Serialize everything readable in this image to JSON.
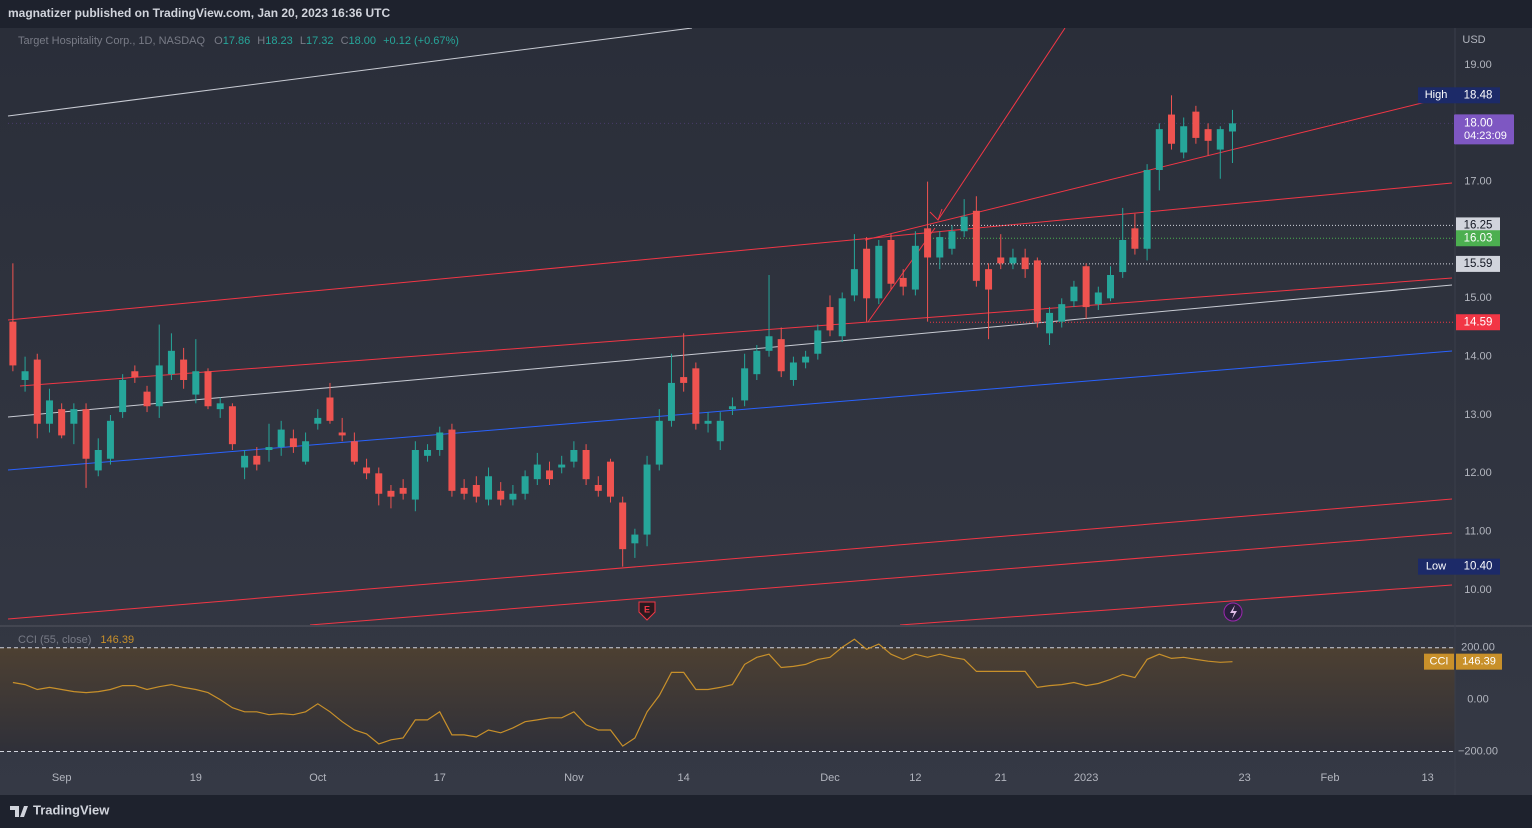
{
  "header": {
    "publisher": "magnatizer published on TradingView.com, Jan 20, 2023 16:36 UTC"
  },
  "footer": {
    "brand": "TradingView"
  },
  "chart_data": [
    {
      "type": "candlestick",
      "title": "Target Hospitality Corp., 1D, NASDAQ",
      "ohlc_keys": [
        "O",
        "H",
        "L",
        "C"
      ],
      "change": "+0.12 (+0.67%)",
      "unit": "USD",
      "up_color": "#26a69a",
      "down_color": "#ef5350",
      "open": [
        14.6,
        13.6,
        13.95,
        12.85,
        13.1,
        12.85,
        13.1,
        12.05,
        12.25,
        13.05,
        13.75,
        13.4,
        13.15,
        13.7,
        13.95,
        13.35,
        13.75,
        13.1,
        13.15,
        12.1,
        12.3,
        12.4,
        12.45,
        12.6,
        12.2,
        12.85,
        13.3,
        12.7,
        12.55,
        12.1,
        12.0,
        11.7,
        11.75,
        11.55,
        12.3,
        12.4,
        12.75,
        11.75,
        11.8,
        11.55,
        11.7,
        11.55,
        11.65,
        11.9,
        12.05,
        12.1,
        12.2,
        12.4,
        11.8,
        12.2,
        11.5,
        10.8,
        10.95,
        12.15,
        12.9,
        13.65,
        13.8,
        12.85,
        12.55,
        13.1,
        13.25,
        13.7,
        14.1,
        14.3,
        13.6,
        13.9,
        14.05,
        14.85,
        14.35,
        15.05,
        15.85,
        15.0,
        16.0,
        15.35,
        15.15,
        16.2,
        15.7,
        15.85,
        16.15,
        16.5,
        15.5,
        15.7,
        15.6,
        15.7,
        15.65,
        14.4,
        14.6,
        14.95,
        15.55,
        14.9,
        15.0,
        15.45,
        16.2,
        15.85,
        17.2,
        18.15,
        17.5,
        18.2,
        17.9,
        17.55,
        17.86
      ],
      "high": [
        15.6,
        14.0,
        14.05,
        13.45,
        13.2,
        13.2,
        13.2,
        12.6,
        13.0,
        13.7,
        13.85,
        13.5,
        14.55,
        14.4,
        14.15,
        14.3,
        13.8,
        13.3,
        13.2,
        12.4,
        12.45,
        12.85,
        12.9,
        12.75,
        12.7,
        13.1,
        13.55,
        12.95,
        12.7,
        12.25,
        12.1,
        11.8,
        11.9,
        12.55,
        12.5,
        12.8,
        12.85,
        11.9,
        11.95,
        12.1,
        11.85,
        11.8,
        12.05,
        12.35,
        12.2,
        12.3,
        12.55,
        12.5,
        11.95,
        12.25,
        11.6,
        11.05,
        12.3,
        13.1,
        14.05,
        14.4,
        13.9,
        13.05,
        13.05,
        13.3,
        14.05,
        14.2,
        15.4,
        14.5,
        14.0,
        14.1,
        14.55,
        15.05,
        15.1,
        16.1,
        16.05,
        16.0,
        16.1,
        15.5,
        16.15,
        17.0,
        16.15,
        16.25,
        16.7,
        16.75,
        15.6,
        16.1,
        15.85,
        15.85,
        15.7,
        14.85,
        15.0,
        15.3,
        15.6,
        15.2,
        15.55,
        16.55,
        16.45,
        17.3,
        18.0,
        18.48,
        18.1,
        18.3,
        18.0,
        17.95,
        18.23
      ],
      "low": [
        13.75,
        13.4,
        12.6,
        12.7,
        12.6,
        12.5,
        11.75,
        11.95,
        12.15,
        12.95,
        13.55,
        13.05,
        12.95,
        13.6,
        13.45,
        13.2,
        13.1,
        12.95,
        12.4,
        11.9,
        12.05,
        12.2,
        12.3,
        12.35,
        12.15,
        12.75,
        12.85,
        12.55,
        12.15,
        11.9,
        11.45,
        11.4,
        11.55,
        11.35,
        12.2,
        12.3,
        11.6,
        11.55,
        11.5,
        11.45,
        11.45,
        11.45,
        11.55,
        11.8,
        11.8,
        12.0,
        12.1,
        11.8,
        11.6,
        11.5,
        10.4,
        10.55,
        10.75,
        12.05,
        12.8,
        13.4,
        12.75,
        12.7,
        12.4,
        13.0,
        13.15,
        13.6,
        14.0,
        13.65,
        13.5,
        13.8,
        13.95,
        14.35,
        14.25,
        14.95,
        14.6,
        14.9,
        15.15,
        15.05,
        15.05,
        14.6,
        15.5,
        15.75,
        16.05,
        15.2,
        14.3,
        15.5,
        15.5,
        15.35,
        14.5,
        14.2,
        14.5,
        14.85,
        14.65,
        14.8,
        14.95,
        15.35,
        15.75,
        15.65,
        16.85,
        17.55,
        17.4,
        17.65,
        17.45,
        17.05,
        17.32
      ],
      "close": [
        13.85,
        13.75,
        12.85,
        13.25,
        12.65,
        13.1,
        12.25,
        12.4,
        12.9,
        13.6,
        13.65,
        13.15,
        13.85,
        14.1,
        13.6,
        13.75,
        13.15,
        13.2,
        12.5,
        12.3,
        12.15,
        12.45,
        12.75,
        12.45,
        12.55,
        12.95,
        12.9,
        12.65,
        12.2,
        12.0,
        11.65,
        11.6,
        11.65,
        12.4,
        12.4,
        12.7,
        11.7,
        11.65,
        11.6,
        11.95,
        11.55,
        11.65,
        11.95,
        12.15,
        11.9,
        12.15,
        12.4,
        11.9,
        11.7,
        11.6,
        10.7,
        10.95,
        12.15,
        12.9,
        13.55,
        13.55,
        12.85,
        12.9,
        12.9,
        13.15,
        13.8,
        14.1,
        14.35,
        13.75,
        13.9,
        14.0,
        14.45,
        14.45,
        15.0,
        15.5,
        15.0,
        15.9,
        15.25,
        15.2,
        15.9,
        15.7,
        16.05,
        16.15,
        16.4,
        15.3,
        15.15,
        15.6,
        15.7,
        15.5,
        14.6,
        14.75,
        14.9,
        15.2,
        14.85,
        15.1,
        15.4,
        16.0,
        15.85,
        17.2,
        17.9,
        17.65,
        17.95,
        17.75,
        17.7,
        17.9,
        18
      ],
      "xlim": [
        -0.4,
        118
      ],
      "xticks": [
        {
          "value": 4,
          "label": "Sep"
        },
        {
          "value": 15,
          "label": "19"
        },
        {
          "value": 25,
          "label": "Oct"
        },
        {
          "value": 35,
          "label": "17"
        },
        {
          "value": 46,
          "label": "Nov"
        },
        {
          "value": 55,
          "label": "14"
        },
        {
          "value": 67,
          "label": "Dec"
        },
        {
          "value": 74,
          "label": "12"
        },
        {
          "value": 81,
          "label": "21"
        },
        {
          "value": 88,
          "label": "2023"
        },
        {
          "value": 101,
          "label": "23"
        },
        {
          "value": 108,
          "label": "Feb"
        },
        {
          "value": 116,
          "label": "13"
        }
      ],
      "ylim": [
        9.4,
        19.634
      ],
      "yticks": [
        {
          "value": 10,
          "label": "10.00"
        },
        {
          "value": 11,
          "label": "11.00"
        },
        {
          "value": 12,
          "label": "12.00"
        },
        {
          "value": 13,
          "label": "13.00"
        },
        {
          "value": 14,
          "label": "14.00"
        },
        {
          "value": 15,
          "label": "15.00"
        },
        {
          "value": 16,
          "label": "16.00"
        },
        {
          "value": 17,
          "label": "17.00"
        },
        {
          "value": 18,
          "label": "18.00"
        },
        {
          "value": 19,
          "label": "19.00"
        }
      ],
      "grid": false,
      "price_lines": [
        {
          "name": "High",
          "value": 18.48,
          "color": "#1c2a68",
          "text_color": "#ffffff",
          "line": false
        },
        {
          "value": 16.25,
          "color": "#d1d4dc",
          "text_color": "#131722",
          "line": true
        },
        {
          "value": 16.03,
          "color": "#4caf50",
          "text_color": "#ffffff",
          "line": true
        },
        {
          "value": 15.59,
          "color": "#d1d4dc",
          "text_color": "#131722",
          "line": true
        },
        {
          "value": 14.59,
          "color": "#f23645",
          "text_color": "#ffffff",
          "line": true
        },
        {
          "name": "Low",
          "value": 10.4,
          "label": "10.40",
          "color": "#1c2a68",
          "text_color": "#ffffff",
          "line": false
        }
      ],
      "last_price": {
        "value": 18,
        "label": "18.00",
        "countdown": "04:23:09",
        "color": "#7e57c2"
      }
    },
    {
      "type": "line",
      "series": [
        {
          "name": "CCI (55, close)",
          "color": "#c8902a",
          "values": [
            66,
            58,
            39,
            47,
            39,
            31,
            27,
            31,
            39,
            54,
            54,
            39,
            50,
            58,
            47,
            39,
            27,
            0,
            -31,
            -47,
            -47,
            -58,
            -54,
            -58,
            -47,
            -16,
            -47,
            -85,
            -117,
            -132,
            -171,
            -155,
            -148,
            -78,
            -78,
            -47,
            -136,
            -136,
            -144,
            -117,
            -128,
            -109,
            -85,
            -78,
            -70,
            -70,
            -47,
            -97,
            -117,
            -117,
            -179,
            -148,
            -47,
            16,
            105,
            105,
            39,
            39,
            47,
            58,
            136,
            163,
            175,
            124,
            128,
            136,
            155,
            163,
            202,
            233,
            194,
            214,
            175,
            155,
            175,
            163,
            175,
            163,
            155,
            109,
            109,
            109,
            109,
            109,
            47,
            54,
            58,
            66,
            54,
            62,
            78,
            97,
            85,
            155,
            175,
            159,
            163,
            155,
            148,
            144,
            146.39
          ]
        }
      ],
      "badge": "CCI",
      "ylim": [
        -252,
        280
      ],
      "yticks": [
        {
          "value": 200,
          "label": "200.00"
        },
        {
          "value": 0,
          "label": "0.00"
        },
        {
          "value": -200,
          "label": "−200.00"
        }
      ],
      "bands": [
        200,
        -200
      ]
    }
  ]
}
